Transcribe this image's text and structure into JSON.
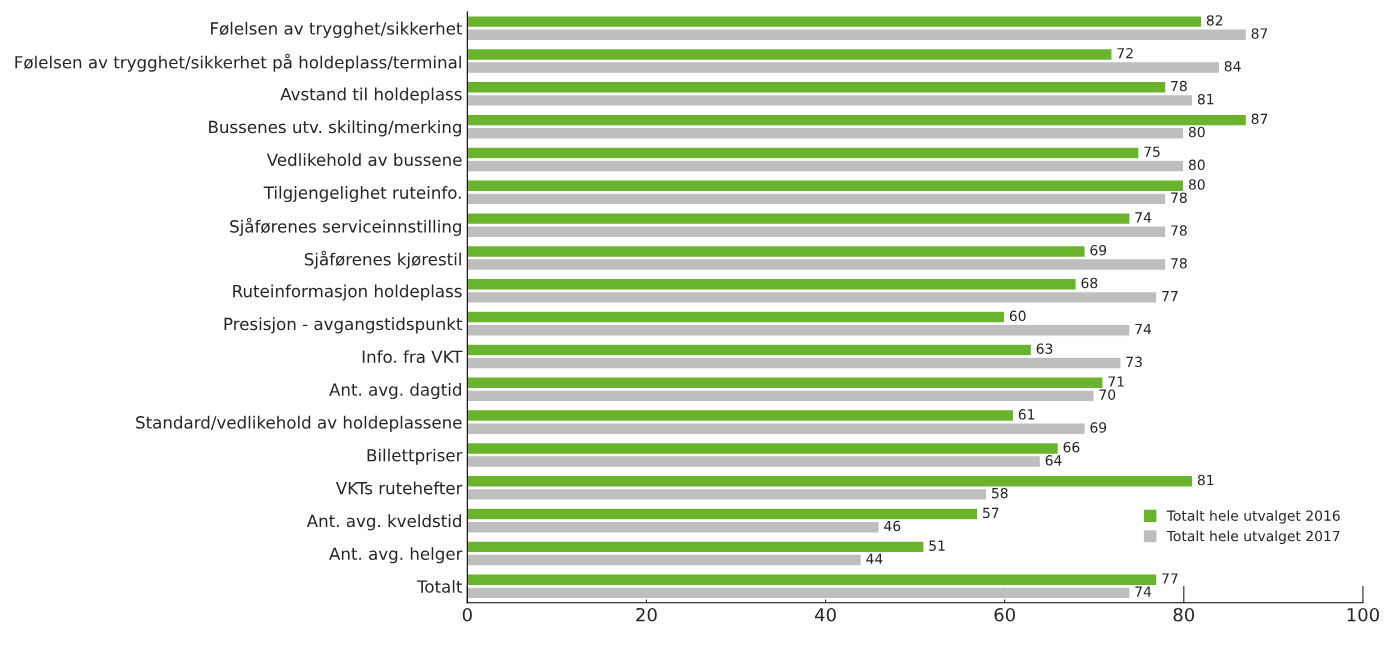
{
  "chart_data": {
    "type": "bar",
    "orientation": "horizontal",
    "categories": [
      "Følelsen av trygghet/sikkerhet",
      "Følelsen av trygghet/sikkerhet på holdeplass/terminal",
      "Avstand til holdeplass",
      "Bussenes utv. skilting/merking",
      "Vedlikehold av bussene",
      "Tilgjengelighet ruteinfo.",
      "Sjåførenes serviceinnstilling",
      "Sjåførenes kjørestil",
      "Ruteinformasjon holdeplass",
      "Presisjon - avgangstidspunkt",
      "Info. fra VKT",
      "Ant. avg. dagtid",
      "Standard/vedlikehold av holdeplassene",
      "Billettpriser",
      "VKTs rutehefter",
      "Ant. avg. kveldstid",
      "Ant. avg. helger",
      "Totalt"
    ],
    "series": [
      {
        "name": "Totalt hele utvalget 2016",
        "color": "#6ab42d",
        "values": [
          82,
          72,
          78,
          87,
          75,
          80,
          74,
          69,
          68,
          60,
          63,
          71,
          61,
          66,
          81,
          57,
          51,
          77
        ]
      },
      {
        "name": "Totalt hele utvalget 2017",
        "color": "#bebebe",
        "values": [
          87,
          84,
          81,
          80,
          80,
          78,
          78,
          78,
          77,
          74,
          73,
          70,
          69,
          64,
          58,
          46,
          44,
          74
        ]
      }
    ],
    "xlim": [
      0,
      100
    ],
    "xticks": [
      0,
      20,
      40,
      60,
      80,
      100
    ],
    "data_labels": true,
    "grid": false,
    "legend": "bottom right"
  }
}
